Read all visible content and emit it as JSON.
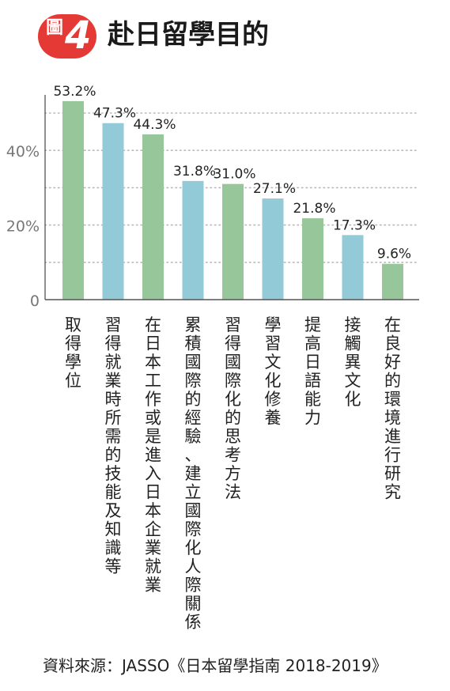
{
  "header": {
    "badge_label": "圖",
    "badge_number": "4",
    "title": "赴日留學目的"
  },
  "colors": {
    "green": "#97c69a",
    "blue": "#93cad7",
    "badge": "#e53935",
    "grid": "#b9b9b9",
    "axis": "#555555"
  },
  "chart_data": {
    "type": "bar",
    "title": "赴日留學目的",
    "xlabel": "",
    "ylabel": "",
    "ylim": [
      0,
      55
    ],
    "yticks": [
      0,
      20,
      40
    ],
    "ytick_labels": [
      "0",
      "20%",
      "40%"
    ],
    "grid": true,
    "categories": [
      "取得學位",
      "習得就業時所需的技能及知識等",
      "在日本工作或是進入日本企業就業",
      "累積國際的經驗、建立國際化人際關係",
      "習得國際化的思考方法",
      "學習文化修養",
      "提高日語能力",
      "接觸異文化",
      "在良好的環境進行研究"
    ],
    "values": [
      53.2,
      47.3,
      44.3,
      31.8,
      31.0,
      27.1,
      21.8,
      17.3,
      9.6
    ],
    "value_labels": [
      "53.2%",
      "47.3%",
      "44.3%",
      "31.8%",
      "31.0%",
      "27.1%",
      "21.8%",
      "17.3%",
      "9.6%"
    ],
    "bar_colors": [
      "green",
      "blue",
      "green",
      "blue",
      "green",
      "blue",
      "green",
      "blue",
      "green"
    ]
  },
  "source": "資料來源：JASSO《日本留學指南 2018-2019》"
}
